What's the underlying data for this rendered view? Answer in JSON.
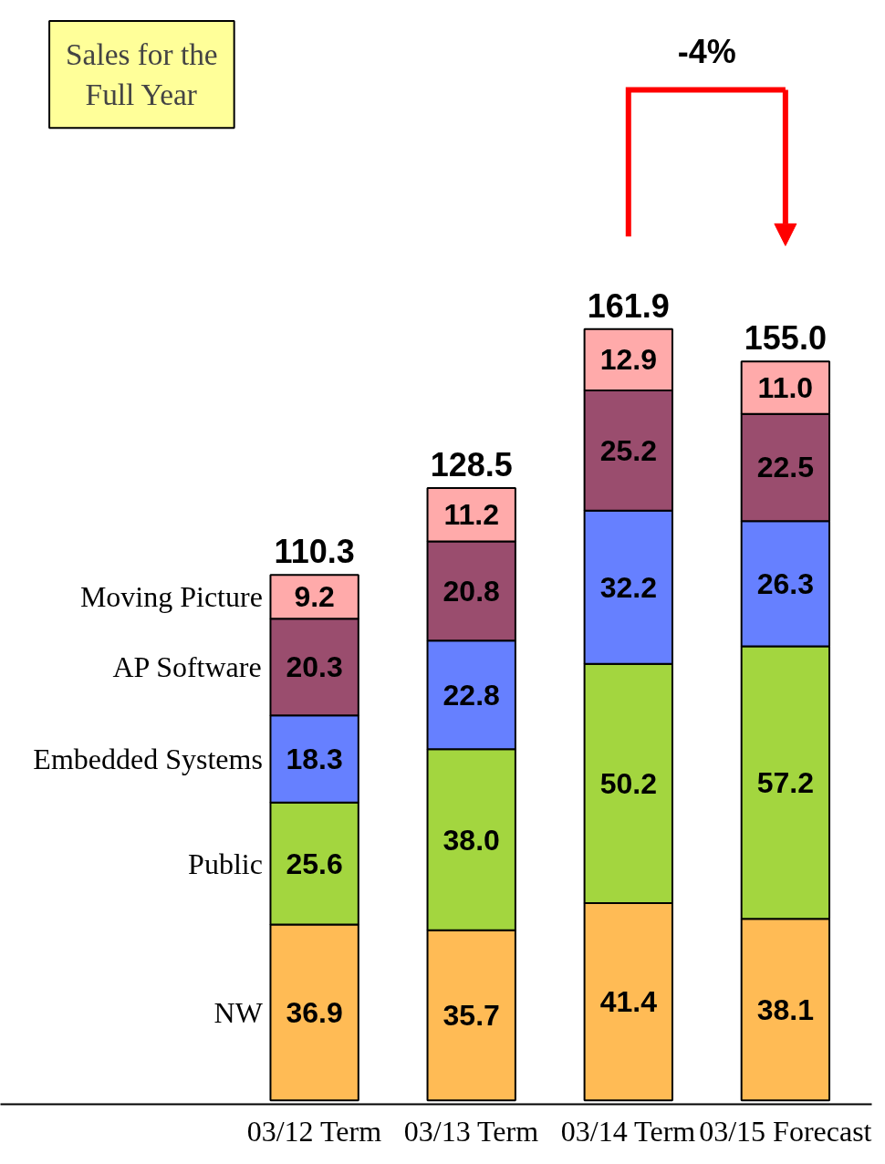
{
  "chart_data": {
    "type": "bar",
    "title": "Sales for the Full Year",
    "categories": [
      "03/12 Term",
      "03/13 Term",
      "03/14 Term",
      "03/15 Forecast"
    ],
    "stacked": true,
    "series": [
      {
        "name": "NW",
        "color": "#ffbb55",
        "values": [
          36.9,
          35.7,
          41.4,
          38.1
        ],
        "value_labels": [
          "36.9",
          "35.7",
          "41.4",
          "38.1"
        ]
      },
      {
        "name": "Public",
        "color": "#a3d63f",
        "values": [
          25.6,
          38.0,
          50.2,
          57.2
        ],
        "value_labels": [
          "25.6",
          "38.0",
          "50.2",
          "57.2"
        ]
      },
      {
        "name": "Embedded Systems",
        "color": "#6680ff",
        "values": [
          18.3,
          22.8,
          32.2,
          26.3
        ],
        "value_labels": [
          "18.3",
          "22.8",
          "32.2",
          "26.3"
        ]
      },
      {
        "name": "AP Software",
        "color": "#9a4d6e",
        "values": [
          20.3,
          20.8,
          25.2,
          22.5
        ],
        "value_labels": [
          "20.3",
          "20.8",
          "25.2",
          "22.5"
        ]
      },
      {
        "name": "Moving Picture",
        "color": "#ffaaaa",
        "values": [
          9.2,
          11.2,
          12.9,
          11.0
        ],
        "value_labels": [
          "9.2",
          "11.2",
          "12.9",
          "11.0"
        ]
      }
    ],
    "totals": [
      "110.3",
      "128.5",
      "161.9",
      "155.0"
    ],
    "annotations": [
      "-4%"
    ]
  }
}
